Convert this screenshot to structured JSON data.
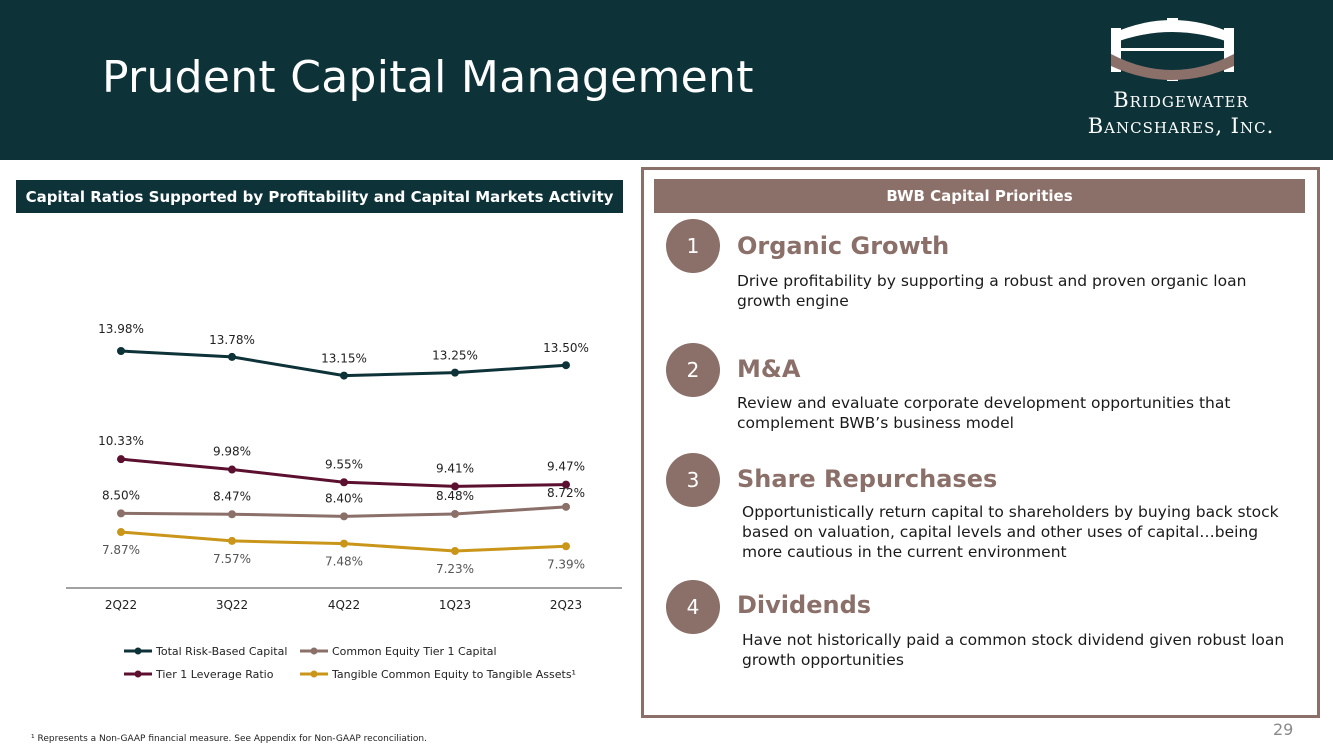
{
  "header": {
    "title": "Prudent Capital Management",
    "logo_line1": "Bridgewater",
    "logo_line2": "Bancshares, Inc."
  },
  "left_section": {
    "banner": "Capital Ratios Supported by Profitability and Capital Markets Activity",
    "footnote": "¹ Represents a Non-GAAP financial measure. See Appendix for Non-GAAP reconciliation."
  },
  "chart_data": {
    "type": "line",
    "title": "",
    "xlabel": "",
    "ylabel": "",
    "categories": [
      "2Q22",
      "3Q22",
      "4Q22",
      "1Q23",
      "2Q23"
    ],
    "ylim": [
      6.5,
      15
    ],
    "grid": false,
    "legend_position": "bottom",
    "series": [
      {
        "name": "Total Risk-Based Capital",
        "color": "#0d3238",
        "values": [
          13.98,
          13.78,
          13.15,
          13.25,
          13.5
        ],
        "labels": [
          "13.98%",
          "13.78%",
          "13.15%",
          "13.25%",
          "13.50%"
        ]
      },
      {
        "name": "Tier 1 Leverage Ratio",
        "color": "#5c1030",
        "values": [
          10.33,
          9.98,
          9.55,
          9.41,
          9.47
        ],
        "labels": [
          "10.33%",
          "9.98%",
          "9.55%",
          "9.41%",
          "9.47%"
        ]
      },
      {
        "name": "Common Equity Tier 1 Capital",
        "color": "#8b6f69",
        "values": [
          8.5,
          8.47,
          8.4,
          8.48,
          8.72
        ],
        "labels": [
          "8.50%",
          "8.47%",
          "8.40%",
          "8.48%",
          "8.72%"
        ]
      },
      {
        "name": "Tangible Common Equity to Tangible Assets¹",
        "color": "#c9961a",
        "values": [
          7.87,
          7.57,
          7.48,
          7.23,
          7.39
        ],
        "labels": [
          "7.87%",
          "7.57%",
          "7.48%",
          "7.23%",
          "7.39%"
        ]
      }
    ]
  },
  "right_section": {
    "banner": "BWB Capital Priorities",
    "priorities": [
      {
        "num": "1",
        "title": "Organic Growth",
        "desc": "Drive profitability by supporting a robust and proven organic loan growth engine"
      },
      {
        "num": "2",
        "title": "M&A",
        "desc": "Review and evaluate corporate development opportunities that complement BWB’s business model"
      },
      {
        "num": "3",
        "title": "Share Repurchases",
        "desc": "Opportunistically return capital to shareholders by buying back stock based on valuation, capital levels and other uses of capital…being more cautious in the current environment"
      },
      {
        "num": "4",
        "title": "Dividends",
        "desc": "Have not historically paid a common stock dividend given robust loan growth opportunities"
      }
    ]
  },
  "page_number": "29",
  "colors": {
    "header_bg": "#0d3238",
    "accent_brown": "#8b6f69"
  }
}
